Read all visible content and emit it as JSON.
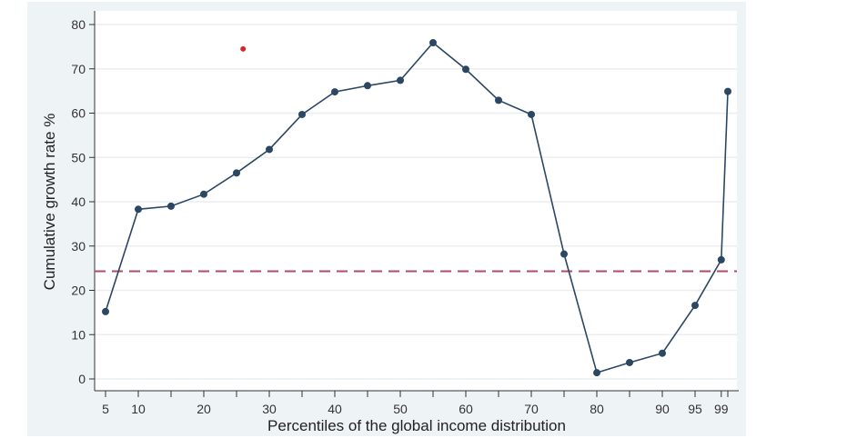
{
  "chart_data": {
    "type": "line",
    "title": "",
    "xlabel": "Percentiles of the global income distribution",
    "ylabel": "Cumulative growth rate %",
    "xlim": [
      3,
      102
    ],
    "ylim": [
      -3,
      82
    ],
    "x_ticks": [
      5,
      10,
      15,
      20,
      25,
      30,
      35,
      40,
      45,
      50,
      55,
      60,
      65,
      70,
      75,
      80,
      85,
      90,
      95,
      99,
      100
    ],
    "x_tick_labels": [
      "5",
      "10",
      "",
      "20",
      "",
      "30",
      "",
      "40",
      "",
      "50",
      "",
      "60",
      "",
      "70",
      "",
      "80",
      "",
      "90",
      "95",
      "99",
      ""
    ],
    "y_ticks": [
      0,
      10,
      20,
      30,
      40,
      50,
      60,
      70,
      80
    ],
    "y_tick_labels": [
      "0",
      "10",
      "20",
      "30",
      "40",
      "50",
      "60",
      "70",
      "80"
    ],
    "grid": true,
    "series": [
      {
        "x": [
          5,
          10,
          15,
          20,
          25,
          30,
          35,
          40,
          45,
          50,
          55,
          60,
          65,
          70,
          75,
          80,
          85,
          90,
          95,
          99,
          100
        ],
        "y": [
          15.2,
          38.3,
          39.0,
          41.7,
          46.5,
          51.8,
          59.7,
          64.8,
          66.2,
          67.4,
          75.9,
          69.9,
          62.9,
          59.7,
          28.2,
          1.4,
          3.7,
          5.8,
          16.6,
          26.9,
          64.9
        ],
        "color": "#2b4763"
      }
    ],
    "reference_line": {
      "y": 24.3,
      "style": "dashed",
      "color": "#b04a6a"
    },
    "extra_point": {
      "x": 26,
      "y": 74.5,
      "color": "#d62728"
    }
  }
}
